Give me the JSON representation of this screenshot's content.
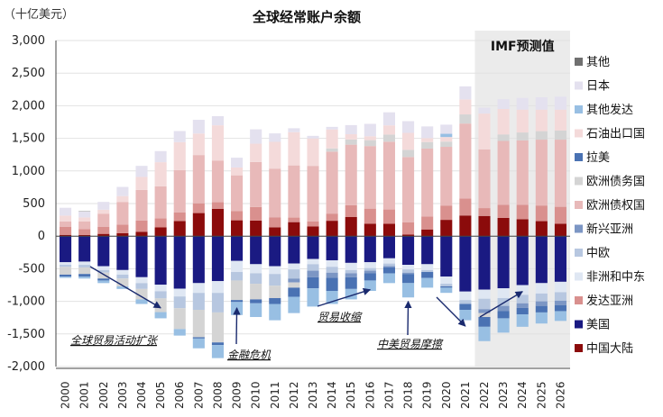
{
  "chart_data": {
    "type": "bar",
    "stacked": true,
    "title": "全球经常账户余额",
    "unit_label": "（十亿美元）",
    "ylim": [
      -2000,
      3000
    ],
    "yticks": [
      3000,
      2500,
      2000,
      1500,
      1000,
      500,
      0,
      -500,
      -1000,
      -1500,
      -2000
    ],
    "ytick_labels": [
      "3,000",
      "2,500",
      "2,000",
      "1,500",
      "1,000",
      "500",
      "0",
      "-500",
      "-1,000",
      "-1,500",
      "-2,000"
    ],
    "categories": [
      "2000",
      "2001",
      "2002",
      "2003",
      "2004",
      "2005",
      "2006",
      "2007",
      "2008",
      "2009",
      "2010",
      "2011",
      "2012",
      "2013",
      "2014",
      "2015",
      "2016",
      "2017",
      "2018",
      "2019",
      "2020",
      "2021",
      "2022",
      "2023",
      "2024",
      "2025",
      "2026"
    ],
    "forecast_label": "IMF预测值",
    "forecast_start": "2022",
    "series": [
      {
        "name": "中国大陆",
        "color": "#8b0b0b",
        "positive": [
          20,
          17,
          35,
          45,
          68,
          134,
          232,
          354,
          420,
          243,
          238,
          136,
          215,
          148,
          236,
          293,
          192,
          189,
          24,
          103,
          250,
          317,
          310,
          280,
          260,
          230,
          190
        ],
        "negative": [
          0,
          0,
          0,
          0,
          0,
          0,
          0,
          0,
          0,
          0,
          0,
          0,
          0,
          0,
          0,
          0,
          0,
          0,
          0,
          0,
          0,
          0,
          0,
          0,
          0,
          0,
          0
        ]
      },
      {
        "name": "美国",
        "color": "#1a1a82",
        "positive": [
          0,
          0,
          0,
          0,
          0,
          0,
          0,
          0,
          0,
          0,
          0,
          0,
          0,
          0,
          0,
          0,
          0,
          0,
          0,
          0,
          0,
          0,
          0,
          0,
          0,
          0,
          0
        ],
        "negative": [
          -400,
          -390,
          -460,
          -520,
          -630,
          -745,
          -805,
          -720,
          -690,
          -380,
          -430,
          -460,
          -420,
          -350,
          -370,
          -410,
          -400,
          -340,
          -440,
          -430,
          -620,
          -850,
          -820,
          -800,
          -750,
          -720,
          -700
        ]
      },
      {
        "name": "发达亚洲",
        "color": "#d9908e",
        "positive": [
          125,
          90,
          110,
          130,
          170,
          140,
          130,
          150,
          100,
          140,
          210,
          150,
          70,
          80,
          110,
          180,
          230,
          220,
          190,
          200,
          220,
          260,
          120,
          200,
          220,
          240,
          260
        ],
        "negative": [
          0,
          0,
          0,
          0,
          0,
          0,
          0,
          0,
          0,
          0,
          0,
          0,
          0,
          0,
          0,
          0,
          0,
          0,
          0,
          0,
          0,
          0,
          0,
          0,
          0,
          0,
          0
        ]
      },
      {
        "name": "非洲和中东",
        "color": "#dfe7f3",
        "positive": [
          0,
          0,
          0,
          0,
          0,
          0,
          0,
          0,
          0,
          0,
          0,
          0,
          0,
          0,
          0,
          0,
          0,
          0,
          0,
          0,
          0,
          0,
          0,
          0,
          0,
          0,
          0
        ],
        "negative": [
          -40,
          -50,
          -60,
          -70,
          -90,
          -100,
          -120,
          -150,
          -180,
          -170,
          -140,
          -120,
          -90,
          -80,
          -100,
          -110,
          -90,
          -80,
          -70,
          -90,
          -110,
          -130,
          -140,
          -150,
          -150,
          -160,
          -160
        ]
      },
      {
        "name": "中欧",
        "color": "#b7c7e0",
        "positive": [
          0,
          0,
          0,
          0,
          0,
          0,
          0,
          0,
          0,
          0,
          0,
          0,
          0,
          0,
          0,
          0,
          0,
          0,
          0,
          0,
          0,
          0,
          0,
          0,
          0,
          0,
          0
        ],
        "negative": [
          -30,
          -40,
          -40,
          -60,
          -90,
          -110,
          -180,
          -260,
          -300,
          -130,
          -160,
          -180,
          -140,
          -100,
          -90,
          -50,
          -40,
          -40,
          -50,
          -30,
          -40,
          -60,
          -160,
          -120,
          -130,
          -120,
          -130
        ]
      },
      {
        "name": "新兴亚洲",
        "color": "#7c96c4",
        "positive": [
          0,
          0,
          0,
          0,
          0,
          0,
          0,
          0,
          0,
          0,
          0,
          0,
          0,
          0,
          0,
          0,
          0,
          0,
          0,
          0,
          0,
          0,
          0,
          0,
          0,
          0,
          0
        ],
        "negative": [
          0,
          0,
          0,
          0,
          0,
          0,
          0,
          0,
          0,
          0,
          0,
          0,
          -60,
          -100,
          -80,
          -60,
          -40,
          -20,
          -20,
          0,
          0,
          0,
          -60,
          -80,
          -70,
          -70,
          -70
        ]
      },
      {
        "name": "欧洲债权国",
        "color": "#e8b9b9",
        "positive": [
          80,
          120,
          200,
          350,
          470,
          490,
          650,
          740,
          640,
          550,
          690,
          750,
          800,
          850,
          950,
          930,
          960,
          1040,
          1000,
          1040,
          900,
          1150,
          900,
          980,
          990,
          1010,
          1030
        ],
        "negative": [
          0,
          0,
          0,
          0,
          0,
          0,
          0,
          0,
          0,
          0,
          0,
          0,
          0,
          0,
          0,
          0,
          0,
          0,
          0,
          0,
          0,
          0,
          0,
          0,
          0,
          0,
          0
        ]
      },
      {
        "name": "欧洲债务国",
        "color": "#d4d4d4",
        "positive": [
          0,
          0,
          0,
          0,
          0,
          0,
          0,
          0,
          0,
          0,
          0,
          0,
          0,
          0,
          50,
          80,
          90,
          110,
          110,
          100,
          80,
          140,
          0,
          100,
          120,
          130,
          140
        ],
        "negative": [
          -120,
          -100,
          -90,
          -120,
          -160,
          -210,
          -320,
          -420,
          -460,
          -300,
          -240,
          -190,
          -80,
          0,
          0,
          0,
          0,
          0,
          0,
          0,
          0,
          0,
          -60,
          0,
          0,
          0,
          0
        ]
      },
      {
        "name": "拉美",
        "color": "#4a72b3",
        "positive": [
          0,
          0,
          0,
          0,
          0,
          0,
          0,
          0,
          0,
          0,
          0,
          0,
          0,
          0,
          0,
          0,
          0,
          0,
          0,
          0,
          0,
          0,
          0,
          0,
          0,
          0,
          0
        ],
        "negative": [
          -30,
          -40,
          -30,
          0,
          0,
          0,
          0,
          -20,
          -40,
          -30,
          -60,
          -90,
          -140,
          -170,
          -200,
          -180,
          -110,
          -90,
          -140,
          -90,
          -20,
          -90,
          -150,
          -110,
          -100,
          -100,
          -90
        ]
      },
      {
        "name": "石油出口国",
        "color": "#f4dada",
        "positive": [
          90,
          60,
          60,
          90,
          200,
          370,
          430,
          330,
          540,
          120,
          280,
          410,
          510,
          420,
          290,
          80,
          60,
          140,
          260,
          60,
          70,
          230,
          550,
          390,
          350,
          330,
          320
        ],
        "negative": [
          0,
          0,
          0,
          0,
          0,
          0,
          0,
          0,
          0,
          0,
          0,
          0,
          0,
          0,
          0,
          0,
          0,
          0,
          0,
          0,
          0,
          0,
          0,
          0,
          0,
          0,
          0
        ]
      },
      {
        "name": "其他发达",
        "color": "#98bfe3",
        "positive": [
          0,
          0,
          0,
          0,
          0,
          0,
          0,
          0,
          0,
          0,
          0,
          0,
          0,
          0,
          0,
          0,
          0,
          0,
          0,
          0,
          50,
          0,
          0,
          0,
          0,
          0,
          0
        ],
        "negative": [
          -20,
          -30,
          -40,
          -40,
          -70,
          -95,
          -100,
          -150,
          -200,
          -200,
          -210,
          -250,
          -250,
          -280,
          -200,
          -160,
          -160,
          -150,
          -220,
          -150,
          -80,
          -160,
          -220,
          -220,
          -190,
          -170,
          -150
        ]
      },
      {
        "name": "日本",
        "color": "#e4e1ef",
        "positive": [
          120,
          90,
          120,
          140,
          170,
          170,
          170,
          210,
          140,
          150,
          220,
          130,
          60,
          40,
          40,
          140,
          190,
          200,
          180,
          180,
          140,
          200,
          90,
          150,
          180,
          190,
          200
        ],
        "negative": [
          0,
          0,
          0,
          0,
          0,
          0,
          0,
          0,
          0,
          0,
          0,
          0,
          0,
          0,
          0,
          0,
          0,
          0,
          0,
          0,
          0,
          0,
          0,
          0,
          0,
          0,
          0
        ]
      },
      {
        "name": "其他",
        "color": "#707070",
        "positive": [
          0,
          5,
          0,
          0,
          0,
          0,
          0,
          0,
          0,
          0,
          0,
          0,
          0,
          0,
          0,
          0,
          0,
          0,
          0,
          0,
          0,
          0,
          0,
          0,
          0,
          0,
          0
        ],
        "negative": [
          0,
          0,
          0,
          0,
          0,
          0,
          0,
          0,
          0,
          0,
          0,
          0,
          0,
          0,
          0,
          0,
          0,
          0,
          0,
          0,
          0,
          0,
          0,
          0,
          0,
          0,
          0
        ]
      }
    ],
    "legend_order": [
      "其他",
      "日本",
      "其他发达",
      "石油出口国",
      "拉美",
      "欧洲债务国",
      "欧洲债权国",
      "新兴亚洲",
      "中欧",
      "非洲和中东",
      "发达亚洲",
      "美国",
      "中国大陆"
    ],
    "annotations": [
      {
        "text": "全球贸易活动扩张",
        "arrow_from_year": "2002",
        "arrow_to_year": "2005",
        "arrow_to_value": -1100
      },
      {
        "text": "金融危机",
        "arrow_from_year": "2009",
        "arrow_to_year": "2009",
        "arrow_to_value": -1100
      },
      {
        "text": "贸易收缩",
        "arrow_from_year": "2013",
        "arrow_to_year": "2016",
        "arrow_to_value": -820
      },
      {
        "text": "中美贸易摩擦",
        "arrow_from_year": "2018",
        "arrow_to_year": "2018",
        "arrow_to_value": -1000
      },
      {
        "text": "",
        "arrow_from_year": "2020",
        "arrow_to_year": "2021",
        "arrow_to_value": -1380
      },
      {
        "text": "",
        "arrow_from_year": "2022",
        "arrow_to_year": "2024",
        "arrow_to_value": -850
      }
    ]
  }
}
